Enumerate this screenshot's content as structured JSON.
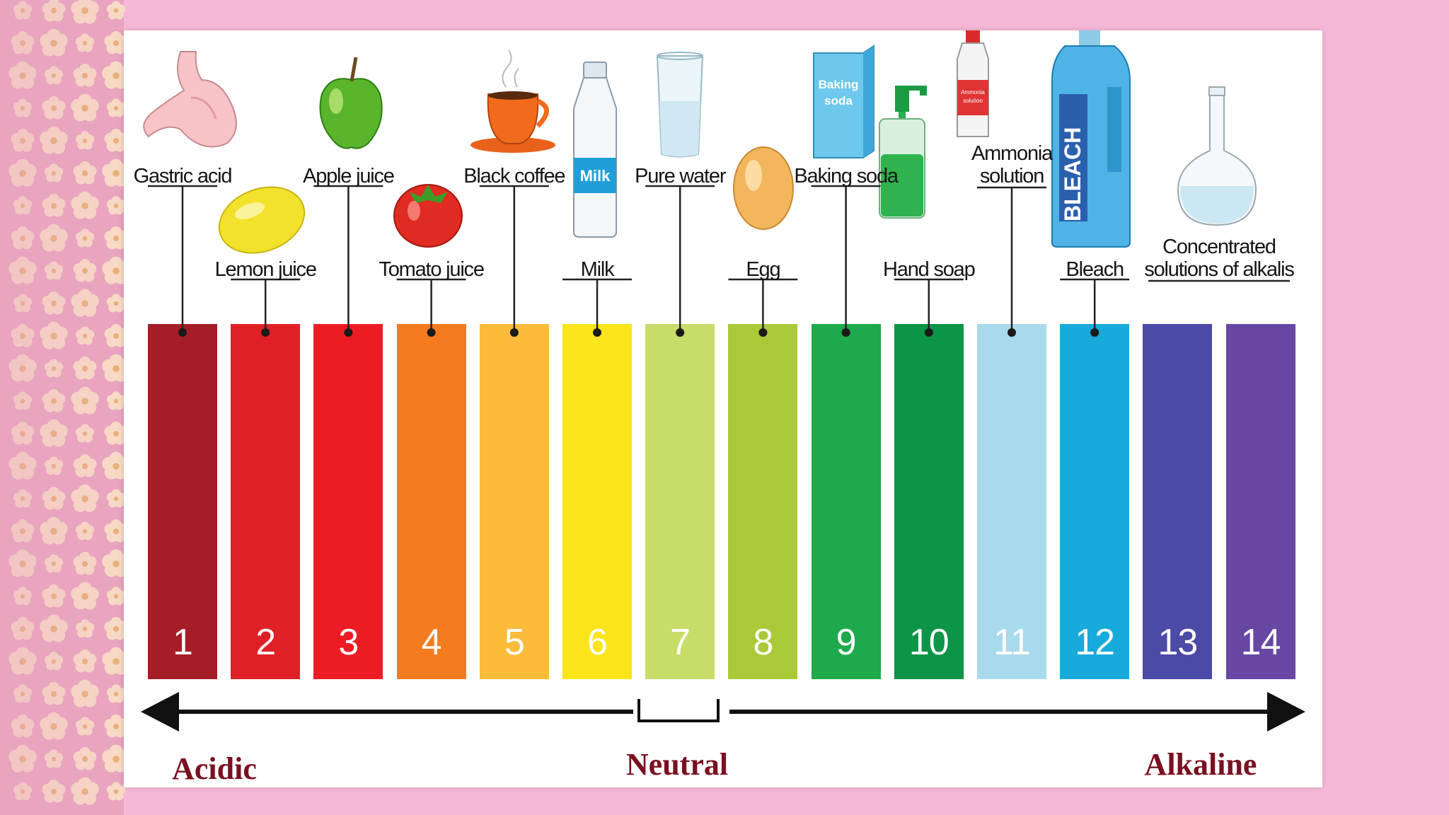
{
  "scale": {
    "levels": [
      {
        "value": "1",
        "color": "#a51d27"
      },
      {
        "value": "2",
        "color": "#e02027"
      },
      {
        "value": "3",
        "color": "#ec1c24"
      },
      {
        "value": "4",
        "color": "#f47b20"
      },
      {
        "value": "5",
        "color": "#fdbb3c"
      },
      {
        "value": "6",
        "color": "#fbe41a"
      },
      {
        "value": "7",
        "color": "#c8dc6a"
      },
      {
        "value": "8",
        "color": "#a9c938"
      },
      {
        "value": "9",
        "color": "#1eaa4b"
      },
      {
        "value": "10",
        "color": "#0c9447"
      },
      {
        "value": "11",
        "color": "#a9daec"
      },
      {
        "value": "12",
        "color": "#19aadc"
      },
      {
        "value": "13",
        "color": "#4b4aa6"
      },
      {
        "value": "14",
        "color": "#6747a3"
      }
    ],
    "acidic_label": "Acidic",
    "neutral_label": "Neutral",
    "alkaline_label": "Alkaline"
  },
  "substances": [
    {
      "name": "Gastric acid",
      "level": 1,
      "icon": "stomach-icon"
    },
    {
      "name": "Lemon juice",
      "level": 2,
      "icon": "lemon-icon"
    },
    {
      "name": "Apple juice",
      "level": 3,
      "icon": "apple-icon"
    },
    {
      "name": "Tomato juice",
      "level": 4,
      "icon": "tomato-icon"
    },
    {
      "name": "Black coffee",
      "level": 5,
      "icon": "coffee-cup-icon"
    },
    {
      "name": "Milk",
      "level": 6,
      "icon": "milk-bottle-icon",
      "icon_text": "Milk"
    },
    {
      "name": "Pure water",
      "level": 7,
      "icon": "water-glass-icon"
    },
    {
      "name": "Egg",
      "level": 8,
      "icon": "egg-icon"
    },
    {
      "name": "Baking soda",
      "level": 9,
      "icon": "baking-soda-box-icon",
      "icon_text": [
        "Baking",
        "soda"
      ]
    },
    {
      "name": "Hand soap",
      "level": 10,
      "icon": "soap-dispenser-icon"
    },
    {
      "name": "Ammonia\nsolution",
      "level": 11,
      "icon": "ammonia-bottle-icon",
      "icon_text": [
        "Ammonia",
        "solution"
      ]
    },
    {
      "name": "Bleach",
      "level": 12,
      "icon": "bleach-bottle-icon",
      "icon_text": "BLEACH"
    },
    {
      "name": "Concentrated\nsolutions of alkalis",
      "level": "13-14",
      "icon": "flask-icon"
    }
  ],
  "colors": {
    "background": "#f6b8d8",
    "card": "#ffffff",
    "scale_word": "#7a1020"
  }
}
